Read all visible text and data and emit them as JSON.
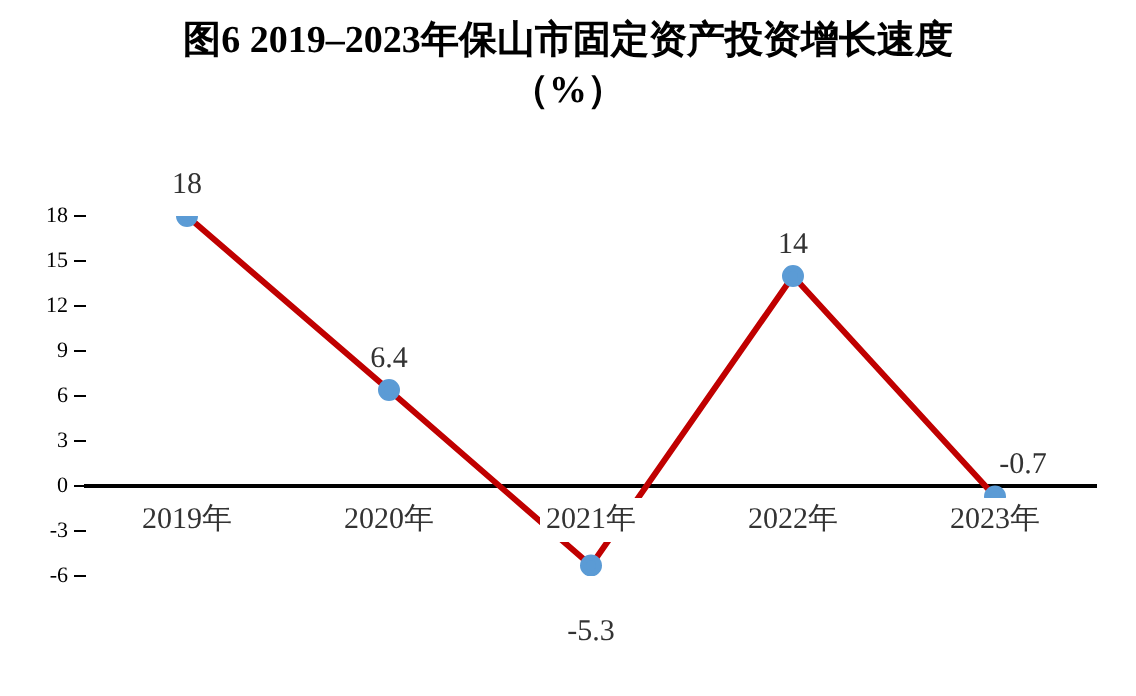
{
  "chart_data": {
    "type": "line",
    "title": "图6  2019–2023年保山市固定资产投资增长速度",
    "subtitle": "（%）",
    "categories": [
      "2019年",
      "2020年",
      "2021年",
      "2022年",
      "2023年"
    ],
    "series": [
      {
        "color": "#c00000",
        "values": [
          18,
          6.4,
          -5.3,
          14,
          -0.7
        ]
      }
    ],
    "ylim": [
      -6,
      18
    ],
    "yticks": [
      -6,
      -3,
      0,
      3,
      6,
      9,
      12,
      15,
      18
    ],
    "grid": false,
    "legend": false,
    "marker": "circle",
    "line_style": "solid",
    "data_labels": true
  }
}
